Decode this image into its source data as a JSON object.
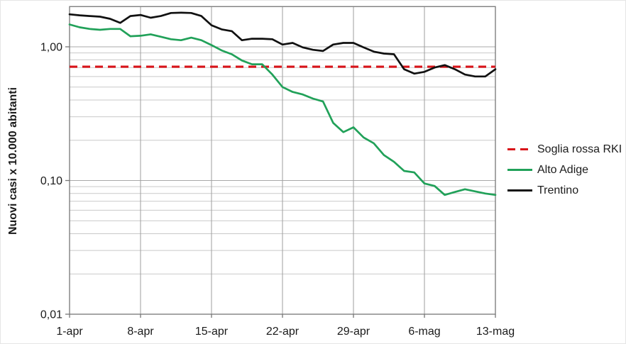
{
  "chart_data": {
    "type": "line",
    "title": "",
    "xlabel": "",
    "ylabel": "Nuovi casi x 10.000 abitanti",
    "y_scale": "log",
    "ylim": [
      0.01,
      2.0
    ],
    "grid": true,
    "legend_position": "right",
    "n_points": 43,
    "x_tick_labels": [
      "1-apr",
      "8-apr",
      "15-apr",
      "22-apr",
      "29-apr",
      "6-mag",
      "13-mag"
    ],
    "x_tick_indices": [
      0,
      7,
      14,
      21,
      28,
      35,
      42
    ],
    "y_major_ticks": [
      {
        "value": 1.0,
        "label": "1,00"
      },
      {
        "value": 0.1,
        "label": "0,10"
      },
      {
        "value": 0.01,
        "label": "0,01"
      }
    ],
    "series": [
      {
        "name": "Soglia rossa RKI",
        "type": "hline",
        "value": 0.71,
        "color": "#d8141a",
        "dashed": true
      },
      {
        "name": "Alto Adige",
        "type": "line",
        "color": "#21a159",
        "dashed": false,
        "values": [
          1.47,
          1.4,
          1.36,
          1.34,
          1.36,
          1.36,
          1.2,
          1.21,
          1.24,
          1.19,
          1.14,
          1.12,
          1.17,
          1.12,
          1.03,
          0.94,
          0.88,
          0.79,
          0.74,
          0.74,
          0.62,
          0.5,
          0.46,
          0.44,
          0.41,
          0.39,
          0.27,
          0.23,
          0.25,
          0.21,
          0.19,
          0.155,
          0.138,
          0.118,
          0.115,
          0.095,
          0.091,
          0.078,
          0.082,
          0.086,
          0.083,
          0.08,
          0.078
        ]
      },
      {
        "name": "Trentino",
        "type": "line",
        "color": "#111111",
        "dashed": false,
        "values": [
          1.75,
          1.72,
          1.7,
          1.68,
          1.62,
          1.51,
          1.7,
          1.73,
          1.65,
          1.7,
          1.79,
          1.8,
          1.79,
          1.7,
          1.45,
          1.35,
          1.31,
          1.12,
          1.15,
          1.15,
          1.14,
          1.04,
          1.07,
          0.99,
          0.95,
          0.93,
          1.04,
          1.07,
          1.07,
          0.99,
          0.92,
          0.89,
          0.88,
          0.68,
          0.63,
          0.65,
          0.7,
          0.73,
          0.68,
          0.62,
          0.6,
          0.6,
          0.68
        ]
      }
    ],
    "colors": {
      "grid_minor": "#c9c9c9",
      "grid_major": "#a9a9a9",
      "grid_vertical": "#9e9e9e",
      "axis": "#767676",
      "text": "#1a1a1a"
    }
  }
}
